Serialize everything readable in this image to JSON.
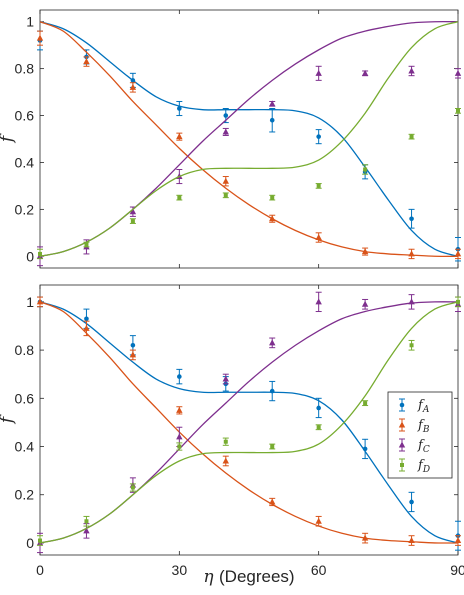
{
  "chart_data": [
    {
      "type": "line",
      "panel": "top",
      "xlabel": "",
      "ylabel": "f",
      "xlim": [
        0,
        90
      ],
      "ylim": [
        -0.05,
        1.05
      ],
      "xticks": [],
      "yticks": [
        "0",
        "0.2",
        "0.4",
        "0.6",
        "0.8",
        "1"
      ],
      "grid": false,
      "legend": null,
      "series": [
        {
          "key": "A",
          "color": "#0072BD",
          "marker": "circle",
          "curve": {
            "x": [
              0,
              5,
              10,
              15,
              20,
              25,
              30,
              35,
              40,
              45,
              50,
              55,
              60,
              65,
              70,
              75,
              80,
              85,
              90
            ],
            "y": [
              1.0,
              0.97,
              0.91,
              0.83,
              0.75,
              0.68,
              0.64,
              0.625,
              0.625,
              0.625,
              0.625,
              0.62,
              0.59,
              0.51,
              0.38,
              0.24,
              0.11,
              0.03,
              0.0
            ]
          },
          "points": {
            "x": [
              0,
              10,
              20,
              30,
              40,
              50,
              60,
              70,
              80,
              90
            ],
            "y": [
              0.92,
              0.85,
              0.75,
              0.63,
              0.6,
              0.58,
              0.51,
              0.36,
              0.16,
              0.03
            ],
            "err": [
              0.04,
              0.03,
              0.03,
              0.03,
              0.03,
              0.05,
              0.03,
              0.03,
              0.04,
              0.05
            ]
          }
        },
        {
          "key": "B",
          "color": "#D95319",
          "marker": "triangle",
          "curve": {
            "x": [
              0,
              5,
              10,
              15,
              20,
              25,
              30,
              35,
              40,
              45,
              50,
              55,
              60,
              65,
              70,
              75,
              80,
              85,
              90
            ],
            "y": [
              1.0,
              0.96,
              0.87,
              0.77,
              0.66,
              0.56,
              0.46,
              0.37,
              0.29,
              0.22,
              0.16,
              0.11,
              0.07,
              0.04,
              0.02,
              0.01,
              0.005,
              0.0,
              0.0
            ]
          },
          "points": {
            "x": [
              0,
              10,
              20,
              30,
              40,
              50,
              60,
              70,
              80,
              90
            ],
            "y": [
              0.93,
              0.83,
              0.72,
              0.51,
              0.32,
              0.16,
              0.08,
              0.02,
              0.01,
              0.01
            ],
            "err": [
              0.03,
              0.02,
              0.02,
              0.015,
              0.02,
              0.015,
              0.02,
              0.015,
              0.02,
              0.02
            ]
          }
        },
        {
          "key": "C",
          "color": "#7E2F8E",
          "marker": "triangle",
          "curve": {
            "x": [
              0,
              5,
              10,
              15,
              20,
              25,
              30,
              35,
              40,
              45,
              50,
              55,
              60,
              65,
              70,
              75,
              80,
              85,
              90
            ],
            "y": [
              0.0,
              0.02,
              0.06,
              0.12,
              0.2,
              0.29,
              0.39,
              0.49,
              0.58,
              0.67,
              0.75,
              0.82,
              0.88,
              0.93,
              0.96,
              0.98,
              0.995,
              1.0,
              1.0
            ]
          },
          "points": {
            "x": [
              0,
              10,
              20,
              30,
              40,
              50,
              60,
              70,
              80,
              90
            ],
            "y": [
              0.0,
              0.04,
              0.19,
              0.34,
              0.53,
              0.65,
              0.78,
              0.78,
              0.79,
              0.78
            ],
            "err": [
              0.04,
              0.03,
              0.02,
              0.03,
              0.015,
              0.01,
              0.03,
              0.01,
              0.02,
              0.02
            ]
          }
        },
        {
          "key": "D",
          "color": "#77AC30",
          "marker": "square",
          "curve": {
            "x": [
              0,
              5,
              10,
              15,
              20,
              25,
              30,
              35,
              40,
              45,
              50,
              55,
              60,
              65,
              70,
              75,
              80,
              85,
              90
            ],
            "y": [
              0.0,
              0.02,
              0.06,
              0.12,
              0.2,
              0.28,
              0.34,
              0.37,
              0.375,
              0.375,
              0.375,
              0.38,
              0.41,
              0.49,
              0.61,
              0.76,
              0.89,
              0.97,
              1.0
            ]
          },
          "points": {
            "x": [
              0,
              10,
              20,
              30,
              40,
              50,
              60,
              70,
              80,
              90
            ],
            "y": [
              0.01,
              0.05,
              0.15,
              0.25,
              0.26,
              0.25,
              0.3,
              0.37,
              0.51,
              0.62
            ],
            "err": [
              0.02,
              0.01,
              0.01,
              0.01,
              0.01,
              0.01,
              0.01,
              0.02,
              0.01,
              0.01
            ]
          }
        }
      ]
    },
    {
      "type": "line",
      "panel": "bottom",
      "xlabel": "η (Degrees)",
      "ylabel": "f",
      "xlim": [
        0,
        90
      ],
      "ylim": [
        -0.05,
        1.07
      ],
      "xticks": [
        "0",
        "30",
        "60",
        "90"
      ],
      "yticks": [
        "0",
        "0.2",
        "0.4",
        "0.6",
        "0.8",
        "1"
      ],
      "grid": false,
      "legend": {
        "position": "right",
        "entries": [
          "f_A",
          "f_B",
          "f_C",
          "f_D"
        ]
      },
      "series": [
        {
          "key": "A",
          "label_main": "f",
          "label_sub": "A",
          "color": "#0072BD",
          "marker": "circle",
          "curve": {
            "x": [
              0,
              5,
              10,
              15,
              20,
              25,
              30,
              35,
              40,
              45,
              50,
              55,
              60,
              65,
              70,
              75,
              80,
              85,
              90
            ],
            "y": [
              1.0,
              0.97,
              0.91,
              0.83,
              0.75,
              0.68,
              0.64,
              0.625,
              0.625,
              0.625,
              0.625,
              0.62,
              0.59,
              0.51,
              0.38,
              0.24,
              0.11,
              0.03,
              0.0
            ]
          },
          "points": {
            "x": [
              0,
              10,
              20,
              30,
              40,
              50,
              60,
              70,
              80,
              90
            ],
            "y": [
              1.0,
              0.93,
              0.82,
              0.69,
              0.66,
              0.63,
              0.56,
              0.39,
              0.17,
              0.03
            ],
            "err": [
              0.02,
              0.04,
              0.04,
              0.03,
              0.03,
              0.04,
              0.04,
              0.04,
              0.04,
              0.06
            ]
          }
        },
        {
          "key": "B",
          "label_main": "f",
          "label_sub": "B",
          "color": "#D95319",
          "marker": "triangle",
          "curve": {
            "x": [
              0,
              5,
              10,
              15,
              20,
              25,
              30,
              35,
              40,
              45,
              50,
              55,
              60,
              65,
              70,
              75,
              80,
              85,
              90
            ],
            "y": [
              1.0,
              0.96,
              0.87,
              0.77,
              0.66,
              0.56,
              0.46,
              0.37,
              0.29,
              0.22,
              0.16,
              0.11,
              0.07,
              0.04,
              0.02,
              0.01,
              0.005,
              0.0,
              0.0
            ]
          },
          "points": {
            "x": [
              0,
              10,
              20,
              30,
              40,
              50,
              60,
              70,
              80,
              90
            ],
            "y": [
              1.0,
              0.89,
              0.78,
              0.55,
              0.34,
              0.17,
              0.09,
              0.02,
              0.01,
              0.01
            ],
            "err": [
              0.02,
              0.03,
              0.02,
              0.015,
              0.02,
              0.015,
              0.02,
              0.02,
              0.02,
              0.02
            ]
          }
        },
        {
          "key": "C",
          "label_main": "f",
          "label_sub": "C",
          "color": "#7E2F8E",
          "marker": "triangle",
          "curve": {
            "x": [
              0,
              5,
              10,
              15,
              20,
              25,
              30,
              35,
              40,
              45,
              50,
              55,
              60,
              65,
              70,
              75,
              80,
              85,
              90
            ],
            "y": [
              0.0,
              0.02,
              0.06,
              0.12,
              0.2,
              0.29,
              0.39,
              0.49,
              0.58,
              0.67,
              0.75,
              0.82,
              0.88,
              0.93,
              0.96,
              0.98,
              0.995,
              1.0,
              1.0
            ]
          },
          "points": {
            "x": [
              0,
              10,
              20,
              30,
              40,
              50,
              60,
              70,
              80,
              90
            ],
            "y": [
              0.0,
              0.05,
              0.24,
              0.44,
              0.68,
              0.83,
              1.0,
              0.99,
              1.0,
              0.99
            ],
            "err": [
              0.04,
              0.03,
              0.03,
              0.04,
              0.02,
              0.02,
              0.04,
              0.02,
              0.03,
              0.03
            ]
          }
        },
        {
          "key": "D",
          "label_main": "f",
          "label_sub": "D",
          "color": "#77AC30",
          "marker": "square",
          "curve": {
            "x": [
              0,
              5,
              10,
              15,
              20,
              25,
              30,
              35,
              40,
              45,
              50,
              55,
              60,
              65,
              70,
              75,
              80,
              85,
              90
            ],
            "y": [
              0.0,
              0.02,
              0.06,
              0.12,
              0.2,
              0.28,
              0.34,
              0.37,
              0.375,
              0.375,
              0.375,
              0.38,
              0.41,
              0.49,
              0.61,
              0.76,
              0.89,
              0.97,
              1.0
            ]
          },
          "points": {
            "x": [
              0,
              10,
              20,
              30,
              40,
              50,
              60,
              70,
              80,
              90
            ],
            "y": [
              0.01,
              0.09,
              0.23,
              0.4,
              0.42,
              0.4,
              0.48,
              0.58,
              0.82,
              1.0
            ],
            "err": [
              0.02,
              0.02,
              0.015,
              0.015,
              0.015,
              0.01,
              0.01,
              0.01,
              0.02,
              0.02
            ]
          }
        }
      ]
    }
  ]
}
